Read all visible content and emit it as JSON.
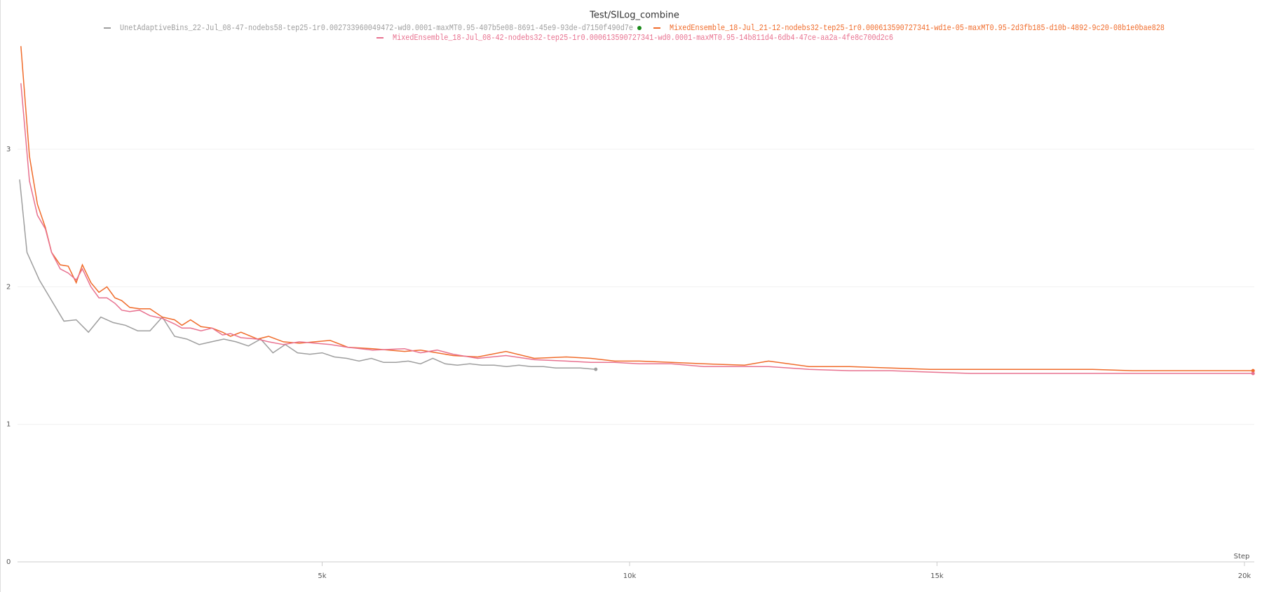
{
  "chart_data": {
    "type": "line",
    "title": "Test/SILog_combine",
    "x_label": "Step",
    "xlim": [
      0,
      20160
    ],
    "ylim": [
      0,
      3.8
    ],
    "xticks": [
      {
        "value": 5000,
        "label": "5k"
      },
      {
        "value": 10000,
        "label": "10k"
      },
      {
        "value": 15000,
        "label": "15k"
      },
      {
        "value": 20000,
        "label": "20k"
      }
    ],
    "yticks": [
      0,
      1,
      2,
      3
    ],
    "grid": true,
    "series": [
      {
        "name": "UnetAdaptiveBins_22-Jul_08-47-nodebs58-tep25-1r0.002733960049472-wd0.0001-maxMT0.95-407b5e08-8691-45e9-93de-d7150f490d7e",
        "color": "#9e9e9e",
        "x": [
          80,
          200,
          400,
          600,
          800,
          1000,
          1200,
          1400,
          1600,
          1800,
          2000,
          2200,
          2400,
          2600,
          2800,
          3000,
          3200,
          3400,
          3600,
          3800,
          4000,
          4200,
          4400,
          4600,
          4800,
          5000,
          5200,
          5400,
          5600,
          5800,
          6000,
          6200,
          6400,
          6600,
          6800,
          7000,
          7200,
          7400,
          7600,
          7800,
          8000,
          8200,
          8400,
          8600,
          8800,
          9000,
          9200,
          9450
        ],
        "values": [
          2.78,
          2.25,
          2.05,
          1.9,
          1.75,
          1.76,
          1.67,
          1.78,
          1.74,
          1.72,
          1.68,
          1.68,
          1.78,
          1.64,
          1.62,
          1.58,
          1.6,
          1.62,
          1.6,
          1.57,
          1.62,
          1.52,
          1.58,
          1.52,
          1.51,
          1.52,
          1.49,
          1.48,
          1.46,
          1.48,
          1.45,
          1.45,
          1.46,
          1.44,
          1.48,
          1.44,
          1.43,
          1.44,
          1.43,
          1.43,
          1.42,
          1.43,
          1.42,
          1.42,
          1.41,
          1.41,
          1.41,
          1.4
        ]
      },
      {
        "name": "MixedEnsemble_18-Jul_21-12-nodebs32-tep25-1r0.000613590727341-wd1e-05-maxMT0.95-2d3fb185-d10b-4892-9c20-08b1e0bae828",
        "color": "#f06b2a",
        "x": [
          100,
          240,
          370,
          500,
          600,
          740,
          870,
          1000,
          1100,
          1240,
          1370,
          1500,
          1630,
          1740,
          1870,
          2030,
          2200,
          2400,
          2600,
          2720,
          2860,
          3030,
          3210,
          3380,
          3510,
          3680,
          3950,
          4130,
          4370,
          4630,
          5130,
          5420,
          5820,
          6340,
          6600,
          6870,
          7130,
          7530,
          7990,
          8450,
          8970,
          9370,
          9760,
          10160,
          10680,
          11210,
          11870,
          12260,
          12920,
          13580,
          14240,
          14890,
          15550,
          16210,
          16870,
          17530,
          18180,
          18840,
          19500,
          20140
        ],
        "values": [
          3.75,
          2.95,
          2.6,
          2.43,
          2.25,
          2.16,
          2.15,
          2.03,
          2.16,
          2.03,
          1.96,
          2.0,
          1.92,
          1.9,
          1.85,
          1.84,
          1.84,
          1.78,
          1.76,
          1.72,
          1.76,
          1.71,
          1.7,
          1.67,
          1.64,
          1.67,
          1.62,
          1.64,
          1.6,
          1.59,
          1.61,
          1.56,
          1.55,
          1.53,
          1.54,
          1.52,
          1.5,
          1.49,
          1.53,
          1.48,
          1.49,
          1.48,
          1.46,
          1.46,
          1.45,
          1.44,
          1.43,
          1.46,
          1.42,
          1.42,
          1.41,
          1.4,
          1.4,
          1.4,
          1.4,
          1.4,
          1.39,
          1.39,
          1.39,
          1.39
        ]
      },
      {
        "name": "MixedEnsemble_18-Jul_08-42-nodebs32-tep25-1r0.000613590727341-wd0.0001-maxMT0.95-14b811d4-6db4-47ce-aa2a-4fe8c700d2c6",
        "color": "#e8718f",
        "x": [
          100,
          240,
          370,
          500,
          600,
          740,
          870,
          1000,
          1100,
          1240,
          1370,
          1500,
          1630,
          1740,
          1870,
          2030,
          2200,
          2400,
          2600,
          2720,
          2860,
          3030,
          3210,
          3380,
          3510,
          3680,
          3950,
          4130,
          4370,
          4630,
          5130,
          5420,
          5820,
          6340,
          6600,
          6870,
          7130,
          7530,
          7990,
          8450,
          8970,
          9370,
          9760,
          10160,
          10680,
          11210,
          11870,
          12260,
          12920,
          13580,
          14240,
          14890,
          15550,
          16210,
          16870,
          17530,
          18180,
          18840,
          19500,
          20140
        ],
        "values": [
          3.48,
          2.77,
          2.52,
          2.42,
          2.25,
          2.13,
          2.1,
          2.05,
          2.13,
          2.0,
          1.92,
          1.92,
          1.88,
          1.83,
          1.82,
          1.83,
          1.79,
          1.77,
          1.73,
          1.7,
          1.7,
          1.68,
          1.7,
          1.65,
          1.66,
          1.63,
          1.62,
          1.6,
          1.58,
          1.6,
          1.58,
          1.56,
          1.54,
          1.55,
          1.52,
          1.54,
          1.51,
          1.48,
          1.5,
          1.47,
          1.46,
          1.45,
          1.45,
          1.44,
          1.44,
          1.42,
          1.42,
          1.42,
          1.4,
          1.39,
          1.39,
          1.38,
          1.37,
          1.37,
          1.37,
          1.37,
          1.37,
          1.37,
          1.37,
          1.37
        ]
      }
    ]
  }
}
